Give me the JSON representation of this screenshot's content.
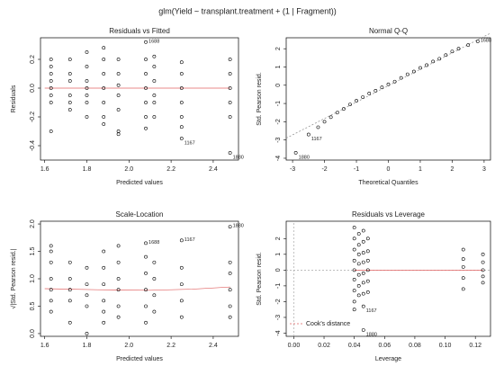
{
  "title": "glm(Yield ~ transplant.treatment + (1 | Fragment))",
  "chart_data": [
    {
      "type": "scatter",
      "title": "Residuals vs Fitted",
      "xlabel": "Predicted values",
      "ylabel": "Residuals",
      "xlim": [
        1.58,
        2.52
      ],
      "ylim": [
        -0.5,
        0.35
      ],
      "xticks": [
        1.6,
        1.8,
        {
          "value": 2,
          "label": "2.0"
        },
        2.2,
        2.4
      ],
      "yticks": [
        -0.4,
        -0.2,
        {
          "value": 0,
          "label": "0.0"
        },
        0.2
      ],
      "x": [
        1.63,
        1.63,
        1.63,
        1.63,
        1.63,
        1.63,
        1.63,
        1.63,
        1.72,
        1.72,
        1.72,
        1.72,
        1.72,
        1.72,
        1.8,
        1.8,
        1.8,
        1.8,
        1.8,
        1.8,
        1.8,
        1.88,
        1.88,
        1.88,
        1.88,
        1.88,
        1.88,
        1.88,
        1.95,
        1.95,
        1.95,
        1.95,
        1.95,
        1.95,
        1.95,
        2.08,
        2.08,
        2.08,
        2.08,
        2.08,
        2.08,
        2.08,
        2.12,
        2.12,
        2.12,
        2.12,
        2.12,
        2.12,
        2.25,
        2.25,
        2.25,
        2.25,
        2.25,
        2.25,
        2.25,
        2.48,
        2.48,
        2.48,
        2.48,
        2.48,
        2.48
      ],
      "y": [
        0.2,
        0.15,
        0.1,
        0.05,
        0,
        -0.05,
        -0.1,
        -0.3,
        0.2,
        0.1,
        0.05,
        -0.05,
        -0.1,
        -0.15,
        0.25,
        0.15,
        0.05,
        0,
        -0.05,
        -0.1,
        -0.2,
        0.28,
        0.2,
        0.1,
        0,
        -0.1,
        -0.2,
        -0.25,
        0.2,
        0.1,
        0.02,
        -0.05,
        -0.15,
        -0.3,
        -0.32,
        0.32,
        0.2,
        0.1,
        0,
        -0.1,
        -0.2,
        -0.28,
        0.22,
        0.15,
        0.05,
        -0.05,
        -0.1,
        -0.2,
        0.18,
        0.1,
        0,
        -0.1,
        -0.2,
        -0.27,
        -0.35,
        0.2,
        0.1,
        0,
        -0.1,
        -0.2,
        -0.45
      ],
      "lines": [
        {
          "color": "#e06060",
          "dash": false,
          "x": [
            1.6,
            2.48
          ],
          "y": [
            0,
            0
          ]
        }
      ],
      "annotations": [
        {
          "text": "1688",
          "x": 2.08,
          "y": 0.32
        },
        {
          "text": "1167",
          "x": 2.25,
          "y": -0.35
        },
        {
          "text": "1880",
          "x": 2.48,
          "y": -0.45
        }
      ]
    },
    {
      "type": "scatter",
      "title": "Normal Q-Q",
      "xlabel": "Theoretical Quantiles",
      "ylabel": "Std. Pearson resid.",
      "xlim": [
        -3.2,
        3.2
      ],
      "ylim": [
        -4.1,
        2.6
      ],
      "xticks": [
        -3,
        -2,
        -1,
        0,
        1,
        2,
        3
      ],
      "yticks": [
        -4,
        -3,
        -2,
        -1,
        0,
        1,
        2
      ],
      "x": [
        -2.9,
        -2.5,
        -2.2,
        -2.0,
        -1.8,
        -1.6,
        -1.4,
        -1.2,
        -1.0,
        -0.8,
        -0.6,
        -0.4,
        -0.2,
        0,
        0.2,
        0.4,
        0.6,
        0.8,
        1.0,
        1.2,
        1.4,
        1.6,
        1.8,
        2.0,
        2.2,
        2.5,
        2.8
      ],
      "y": [
        -3.7,
        -2.7,
        -2.3,
        -2.0,
        -1.75,
        -1.5,
        -1.3,
        -1.05,
        -0.85,
        -0.65,
        -0.45,
        -0.3,
        -0.12,
        0.05,
        0.2,
        0.4,
        0.6,
        0.75,
        0.95,
        1.1,
        1.3,
        1.45,
        1.65,
        1.85,
        2.0,
        2.2,
        2.4
      ],
      "lines": [
        {
          "color": "#888888",
          "dash": true,
          "x": [
            -3.2,
            3.2
          ],
          "y": [
            -2.9,
            2.85
          ]
        }
      ],
      "annotations": [
        {
          "text": "1688",
          "x": 2.8,
          "y": 2.4
        },
        {
          "text": "1167",
          "x": -2.5,
          "y": -2.7
        },
        {
          "text": "1880",
          "x": -2.9,
          "y": -3.7
        }
      ]
    },
    {
      "type": "scatter",
      "title": "Scale-Location",
      "xlabel": "Predicted values",
      "ylabel": "√|Std. Pearson resid.|",
      "xlim": [
        1.58,
        2.52
      ],
      "ylim": [
        -0.05,
        2.05
      ],
      "xticks": [
        1.6,
        1.8,
        {
          "value": 2,
          "label": "2.0"
        },
        2.2,
        2.4
      ],
      "yticks": [
        {
          "value": 0,
          "label": "0.0"
        },
        0.5,
        {
          "value": 1,
          "label": "1.0"
        },
        1.5,
        {
          "value": 2,
          "label": "2.0"
        }
      ],
      "x": [
        1.63,
        1.63,
        1.63,
        1.63,
        1.63,
        1.63,
        1.63,
        1.72,
        1.72,
        1.72,
        1.72,
        1.72,
        1.8,
        1.8,
        1.8,
        1.8,
        1.8,
        1.88,
        1.88,
        1.88,
        1.88,
        1.88,
        1.88,
        1.95,
        1.95,
        1.95,
        1.95,
        1.95,
        1.95,
        2.08,
        2.08,
        2.08,
        2.08,
        2.08,
        2.08,
        2.12,
        2.12,
        2.12,
        2.12,
        2.25,
        2.25,
        2.25,
        2.25,
        2.25,
        2.48,
        2.48,
        2.48,
        2.48,
        2.48,
        2.48
      ],
      "y": [
        1.6,
        1.3,
        1.0,
        0.8,
        0.6,
        0.4,
        1.5,
        1.3,
        1.0,
        0.8,
        0.6,
        0.2,
        1.2,
        0.9,
        0.7,
        0.5,
        0.0,
        1.5,
        1.2,
        0.9,
        0.6,
        0.4,
        0.2,
        1.6,
        1.3,
        1.0,
        0.8,
        0.5,
        0.3,
        1.65,
        1.4,
        1.1,
        0.8,
        0.5,
        0.2,
        1.3,
        1.0,
        0.7,
        0.4,
        1.7,
        1.2,
        0.9,
        0.6,
        0.3,
        1.95,
        1.3,
        1.1,
        0.8,
        0.5,
        0.3
      ],
      "lines": [
        {
          "color": "#e06060",
          "dash": false,
          "x": [
            1.6,
            1.85,
            2.1,
            2.3,
            2.48
          ],
          "y": [
            0.82,
            0.8,
            0.79,
            0.81,
            0.85
          ]
        }
      ],
      "annotations": [
        {
          "text": "1880",
          "x": 2.48,
          "y": 1.95
        },
        {
          "text": "1688",
          "x": 2.08,
          "y": 1.65
        },
        {
          "text": "1167",
          "x": 2.25,
          "y": 1.7
        }
      ]
    },
    {
      "type": "scatter",
      "title": "Residuals vs Leverage",
      "xlabel": "Leverage",
      "ylabel": "Std. Pearson resid.",
      "xlim": [
        -0.005,
        0.13
      ],
      "ylim": [
        -4.2,
        3.1
      ],
      "xticks": [
        {
          "value": 0,
          "label": "0.00"
        },
        0.02,
        0.04,
        0.06,
        0.08,
        {
          "value": 0.1,
          "label": "0.10"
        },
        0.12
      ],
      "yticks": [
        -4,
        -3,
        -2,
        -1,
        0,
        1,
        2
      ],
      "x": [
        0.04,
        0.04,
        0.04,
        0.04,
        0.04,
        0.04,
        0.04,
        0.04,
        0.04,
        0.043,
        0.043,
        0.043,
        0.043,
        0.043,
        0.043,
        0.043,
        0.046,
        0.046,
        0.046,
        0.046,
        0.046,
        0.046,
        0.046,
        0.046,
        0.046,
        0.049,
        0.049,
        0.049,
        0.049,
        0.049,
        0.049,
        0.112,
        0.112,
        0.112,
        0.112,
        0.112,
        0.125,
        0.125,
        0.125,
        0.125,
        0.125
      ],
      "y": [
        2.7,
        2.0,
        1.3,
        0.6,
        0,
        -0.6,
        -1.3,
        -2.0,
        -2.5,
        2.3,
        1.6,
        1.0,
        0.4,
        -0.3,
        -1.0,
        -1.6,
        2.5,
        1.8,
        1.1,
        0.5,
        -0.2,
        -0.8,
        -1.5,
        -2.3,
        -3.8,
        2.0,
        1.2,
        0.6,
        0,
        -0.7,
        -1.4,
        1.3,
        0.7,
        0.2,
        -0.5,
        -1.2,
        1.0,
        0.5,
        0,
        -0.4,
        -0.8
      ],
      "lines": [
        {
          "color": "#aaaaaa",
          "dash": true,
          "x": [
            -0.005,
            0.13
          ],
          "y": [
            0,
            0
          ]
        },
        {
          "color": "#aaaaaa",
          "dash": true,
          "x": [
            0,
            0
          ],
          "y": [
            -4.2,
            3.1
          ]
        },
        {
          "color": "#e06060",
          "dash": false,
          "x": [
            0.04,
            0.125
          ],
          "y": [
            0,
            0
          ]
        }
      ],
      "legend": {
        "label": "Cook's distance",
        "color": "#e06060"
      },
      "annotations": [
        {
          "text": "1167",
          "x": 0.046,
          "y": -2.3
        },
        {
          "text": "1880",
          "x": 0.046,
          "y": -3.8
        }
      ]
    }
  ]
}
